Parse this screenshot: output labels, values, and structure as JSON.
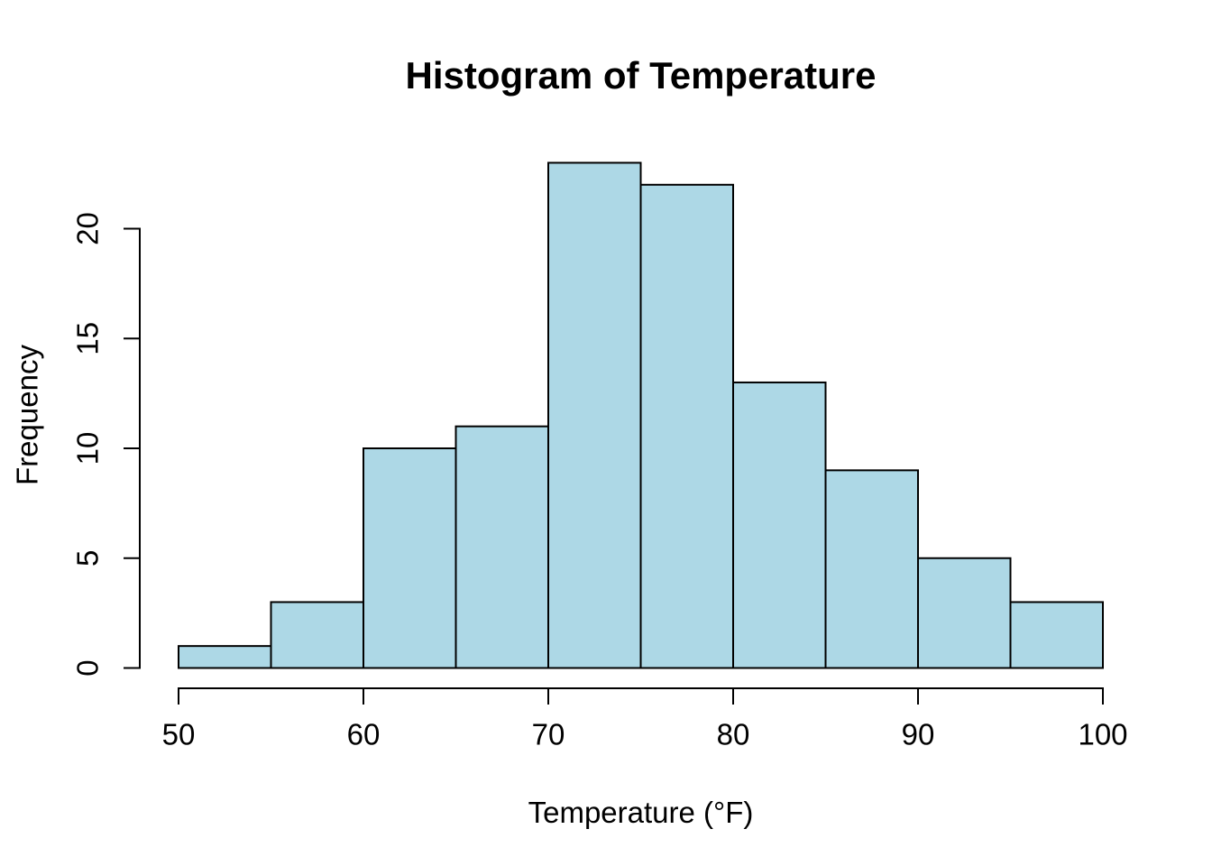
{
  "chart_data": {
    "type": "bar",
    "subtype": "histogram",
    "title": "Histogram of Temperature",
    "xlabel": "Temperature (°F)",
    "ylabel": "Frequency",
    "bin_edges": [
      50,
      55,
      60,
      65,
      70,
      75,
      80,
      85,
      90,
      95,
      100
    ],
    "counts": [
      1,
      3,
      10,
      11,
      23,
      22,
      13,
      9,
      5,
      3
    ],
    "x_ticks": [
      50,
      60,
      70,
      80,
      90,
      100
    ],
    "y_ticks": [
      0,
      5,
      10,
      15,
      20
    ],
    "xlim": [
      50,
      100
    ],
    "ylim": [
      0,
      23
    ],
    "grid": false,
    "legend": null,
    "colors": {
      "bar_fill": "#ADD8E6",
      "bar_border": "#000000",
      "axis": "#000000",
      "text": "#000000",
      "background": "#FFFFFF"
    }
  }
}
